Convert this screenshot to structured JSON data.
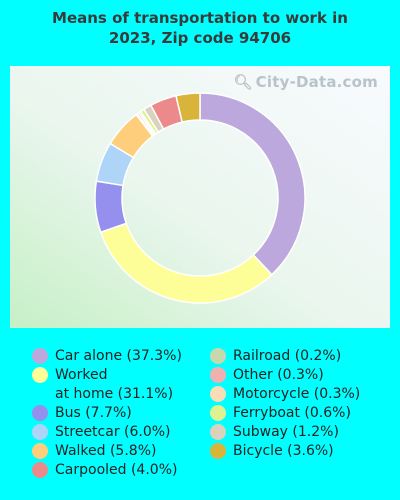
{
  "chart_data": {
    "type": "pie",
    "title_line1": "Means of transportation to work in",
    "title_line2": "2023, Zip code 94706",
    "categories": [
      "Car alone (37.3%)",
      "Worked at home (31.1%)",
      "Bus (7.7%)",
      "Streetcar (6.0%)",
      "Walked (5.8%)",
      "Railroad (0.2%)",
      "Other (0.3%)",
      "Motorcycle (0.3%)",
      "Ferryboat (0.6%)",
      "Subway (1.2%)",
      "Carpooled (4.0%)",
      "Bicycle (3.6%)"
    ],
    "values": [
      37.3,
      31.1,
      7.7,
      6.0,
      5.8,
      0.2,
      0.3,
      0.3,
      0.6,
      1.2,
      4.0,
      3.6
    ],
    "colors": [
      "#bca8dc",
      "#fefe99",
      "#9590ee",
      "#aed5f7",
      "#fece7d",
      "#c5d9ad",
      "#f0b0b0",
      "#f8deb6",
      "#def292",
      "#dad2bd",
      "#ec8a8b",
      "#d9b43b"
    ],
    "start_angle_deg": 0,
    "direction": "clockwise"
  },
  "watermark": "City-Data.com",
  "legend": {
    "left": [
      {
        "label": "Car alone (37.3%)",
        "color": "#bca8dc"
      },
      {
        "label": "Worked\nat home (31.1%)",
        "color": "#fefe99"
      },
      {
        "label": "Bus (7.7%)",
        "color": "#9590ee"
      },
      {
        "label": "Streetcar (6.0%)",
        "color": "#aed5f7"
      },
      {
        "label": "Walked (5.8%)",
        "color": "#fece7d"
      },
      {
        "label": "Carpooled (4.0%)",
        "color": "#ec8a8b"
      }
    ],
    "right": [
      {
        "label": "Railroad (0.2%)",
        "color": "#c5d9ad"
      },
      {
        "label": "Other (0.3%)",
        "color": "#f0b0b0"
      },
      {
        "label": "Motorcycle (0.3%)",
        "color": "#f8deb6"
      },
      {
        "label": "Ferryboat (0.6%)",
        "color": "#def292"
      },
      {
        "label": "Subway (1.2%)",
        "color": "#dad2bd"
      },
      {
        "label": "Bicycle (3.6%)",
        "color": "#d9b43b"
      }
    ]
  }
}
